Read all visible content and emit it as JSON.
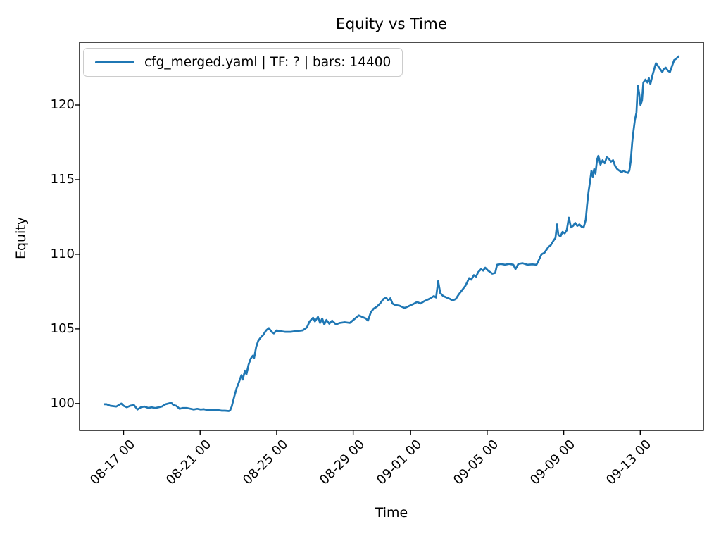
{
  "chart_data": {
    "type": "line",
    "title": "Equity vs Time",
    "xlabel": "Time",
    "ylabel": "Equity",
    "grid": false,
    "legend": {
      "position": "upper left",
      "label": "cfg_merged.yaml | TF: ? | bars: 14400"
    },
    "x_axis": {
      "unit": "days since 08-16 00:00",
      "lim": [
        -1.3,
        31.3
      ],
      "ticks": [
        {
          "pos": 1,
          "label": "08-17 00"
        },
        {
          "pos": 5,
          "label": "08-21 00"
        },
        {
          "pos": 9,
          "label": "08-25 00"
        },
        {
          "pos": 13,
          "label": "08-29 00"
        },
        {
          "pos": 16,
          "label": "09-01 00"
        },
        {
          "pos": 20,
          "label": "09-05 00"
        },
        {
          "pos": 24,
          "label": "09-09 00"
        },
        {
          "pos": 28,
          "label": "09-13 00"
        }
      ]
    },
    "y_axis": {
      "lim": [
        98.2,
        124.2
      ],
      "ticks": [
        100,
        105,
        110,
        115,
        120
      ]
    },
    "series": [
      {
        "name": "cfg_merged.yaml | TF: ? | bars: 14400",
        "color": "#1f77b4",
        "points": [
          [
            0,
            99.95
          ],
          [
            0.11,
            99.95
          ],
          [
            0.3,
            99.85
          ],
          [
            0.62,
            99.8
          ],
          [
            0.75,
            99.9
          ],
          [
            0.88,
            100.0
          ],
          [
            1.0,
            99.85
          ],
          [
            1.17,
            99.75
          ],
          [
            1.35,
            99.85
          ],
          [
            1.54,
            99.9
          ],
          [
            1.73,
            99.6
          ],
          [
            1.9,
            99.75
          ],
          [
            2.09,
            99.8
          ],
          [
            2.3,
            99.7
          ],
          [
            2.46,
            99.75
          ],
          [
            2.65,
            99.7
          ],
          [
            2.83,
            99.75
          ],
          [
            3.0,
            99.8
          ],
          [
            3.19,
            99.95
          ],
          [
            3.49,
            100.05
          ],
          [
            3.6,
            99.9
          ],
          [
            3.75,
            99.85
          ],
          [
            3.93,
            99.65
          ],
          [
            4.1,
            99.7
          ],
          [
            4.3,
            99.7
          ],
          [
            4.5,
            99.65
          ],
          [
            4.66,
            99.6
          ],
          [
            4.85,
            99.65
          ],
          [
            5.03,
            99.6
          ],
          [
            5.2,
            99.62
          ],
          [
            5.4,
            99.56
          ],
          [
            5.6,
            99.58
          ],
          [
            5.77,
            99.55
          ],
          [
            6.0,
            99.55
          ],
          [
            6.13,
            99.52
          ],
          [
            6.3,
            99.52
          ],
          [
            6.5,
            99.5
          ],
          [
            6.57,
            99.55
          ],
          [
            6.65,
            99.8
          ],
          [
            6.79,
            100.5
          ],
          [
            6.9,
            101.0
          ],
          [
            7.05,
            101.5
          ],
          [
            7.16,
            101.9
          ],
          [
            7.23,
            101.6
          ],
          [
            7.34,
            102.2
          ],
          [
            7.42,
            101.95
          ],
          [
            7.53,
            102.6
          ],
          [
            7.64,
            103.0
          ],
          [
            7.75,
            103.2
          ],
          [
            7.82,
            103.05
          ],
          [
            7.93,
            103.8
          ],
          [
            8.04,
            104.2
          ],
          [
            8.15,
            104.4
          ],
          [
            8.3,
            104.6
          ],
          [
            8.45,
            104.9
          ],
          [
            8.59,
            105.05
          ],
          [
            8.74,
            104.8
          ],
          [
            8.85,
            104.7
          ],
          [
            9.0,
            104.9
          ],
          [
            9.18,
            104.85
          ],
          [
            9.43,
            104.8
          ],
          [
            9.73,
            104.8
          ],
          [
            10.0,
            104.85
          ],
          [
            10.36,
            104.9
          ],
          [
            10.58,
            105.1
          ],
          [
            10.72,
            105.5
          ],
          [
            10.9,
            105.75
          ],
          [
            11.0,
            105.5
          ],
          [
            11.16,
            105.8
          ],
          [
            11.27,
            105.4
          ],
          [
            11.38,
            105.7
          ],
          [
            11.49,
            105.3
          ],
          [
            11.6,
            105.6
          ],
          [
            11.75,
            105.35
          ],
          [
            11.9,
            105.55
          ],
          [
            12.1,
            105.3
          ],
          [
            12.3,
            105.4
          ],
          [
            12.56,
            105.45
          ],
          [
            12.82,
            105.4
          ],
          [
            13.1,
            105.7
          ],
          [
            13.29,
            105.9
          ],
          [
            13.47,
            105.8
          ],
          [
            13.66,
            105.7
          ],
          [
            13.77,
            105.55
          ],
          [
            13.92,
            106.1
          ],
          [
            14.06,
            106.35
          ],
          [
            14.25,
            106.5
          ],
          [
            14.4,
            106.7
          ],
          [
            14.58,
            107.0
          ],
          [
            14.72,
            107.1
          ],
          [
            14.83,
            106.9
          ],
          [
            14.94,
            107.05
          ],
          [
            15.05,
            106.7
          ],
          [
            15.2,
            106.6
          ],
          [
            15.42,
            106.55
          ],
          [
            15.68,
            106.4
          ],
          [
            15.86,
            106.5
          ],
          [
            16.12,
            106.65
          ],
          [
            16.34,
            106.8
          ],
          [
            16.52,
            106.7
          ],
          [
            16.7,
            106.85
          ],
          [
            16.96,
            107.0
          ],
          [
            17.22,
            107.2
          ],
          [
            17.33,
            107.1
          ],
          [
            17.44,
            108.2
          ],
          [
            17.55,
            107.4
          ],
          [
            17.7,
            107.2
          ],
          [
            17.88,
            107.1
          ],
          [
            18.07,
            107.0
          ],
          [
            18.18,
            106.9
          ],
          [
            18.36,
            107.0
          ],
          [
            18.51,
            107.3
          ],
          [
            18.69,
            107.6
          ],
          [
            18.87,
            107.9
          ],
          [
            19.06,
            108.4
          ],
          [
            19.17,
            108.3
          ],
          [
            19.31,
            108.6
          ],
          [
            19.42,
            108.5
          ],
          [
            19.53,
            108.8
          ],
          [
            19.68,
            109.0
          ],
          [
            19.79,
            108.9
          ],
          [
            19.9,
            109.1
          ],
          [
            20.05,
            108.9
          ],
          [
            20.27,
            108.7
          ],
          [
            20.42,
            108.75
          ],
          [
            20.52,
            109.3
          ],
          [
            20.71,
            109.35
          ],
          [
            20.93,
            109.3
          ],
          [
            21.15,
            109.35
          ],
          [
            21.37,
            109.3
          ],
          [
            21.48,
            109.0
          ],
          [
            21.63,
            109.35
          ],
          [
            21.85,
            109.4
          ],
          [
            22.1,
            109.3
          ],
          [
            22.36,
            109.32
          ],
          [
            22.58,
            109.3
          ],
          [
            22.73,
            109.7
          ],
          [
            22.84,
            110.0
          ],
          [
            22.99,
            110.1
          ],
          [
            23.1,
            110.3
          ],
          [
            23.21,
            110.5
          ],
          [
            23.32,
            110.6
          ],
          [
            23.46,
            110.9
          ],
          [
            23.57,
            111.1
          ],
          [
            23.65,
            112.0
          ],
          [
            23.72,
            111.3
          ],
          [
            23.83,
            111.2
          ],
          [
            23.94,
            111.5
          ],
          [
            24.05,
            111.4
          ],
          [
            24.16,
            111.6
          ],
          [
            24.27,
            112.45
          ],
          [
            24.38,
            111.8
          ],
          [
            24.49,
            111.9
          ],
          [
            24.6,
            112.1
          ],
          [
            24.71,
            111.9
          ],
          [
            24.82,
            112.0
          ],
          [
            24.93,
            111.85
          ],
          [
            25.04,
            111.8
          ],
          [
            25.15,
            112.3
          ],
          [
            25.22,
            113.3
          ],
          [
            25.3,
            114.2
          ],
          [
            25.38,
            114.9
          ],
          [
            25.45,
            115.6
          ],
          [
            25.52,
            115.2
          ],
          [
            25.59,
            115.7
          ],
          [
            25.66,
            115.4
          ],
          [
            25.74,
            116.3
          ],
          [
            25.81,
            116.6
          ],
          [
            25.92,
            116.0
          ],
          [
            26.03,
            116.3
          ],
          [
            26.14,
            116.1
          ],
          [
            26.25,
            116.5
          ],
          [
            26.36,
            116.4
          ],
          [
            26.47,
            116.2
          ],
          [
            26.58,
            116.3
          ],
          [
            26.69,
            115.9
          ],
          [
            26.8,
            115.7
          ],
          [
            26.91,
            115.6
          ],
          [
            27.02,
            115.5
          ],
          [
            27.13,
            115.6
          ],
          [
            27.24,
            115.5
          ],
          [
            27.36,
            115.45
          ],
          [
            27.43,
            115.6
          ],
          [
            27.5,
            116.2
          ],
          [
            27.58,
            117.5
          ],
          [
            27.65,
            118.3
          ],
          [
            27.72,
            119.0
          ],
          [
            27.8,
            119.5
          ],
          [
            27.87,
            121.3
          ],
          [
            27.94,
            120.8
          ],
          [
            28.01,
            120.0
          ],
          [
            28.09,
            120.3
          ],
          [
            28.16,
            121.5
          ],
          [
            28.27,
            121.7
          ],
          [
            28.38,
            121.5
          ],
          [
            28.45,
            121.8
          ],
          [
            28.53,
            121.4
          ],
          [
            28.64,
            122.0
          ],
          [
            28.75,
            122.5
          ],
          [
            28.82,
            122.8
          ],
          [
            28.93,
            122.6
          ],
          [
            29.04,
            122.4
          ],
          [
            29.15,
            122.2
          ],
          [
            29.22,
            122.4
          ],
          [
            29.33,
            122.5
          ],
          [
            29.44,
            122.3
          ],
          [
            29.55,
            122.2
          ],
          [
            29.66,
            122.6
          ],
          [
            29.77,
            123.0
          ],
          [
            29.88,
            123.1
          ],
          [
            30.0,
            123.25
          ]
        ]
      }
    ]
  }
}
